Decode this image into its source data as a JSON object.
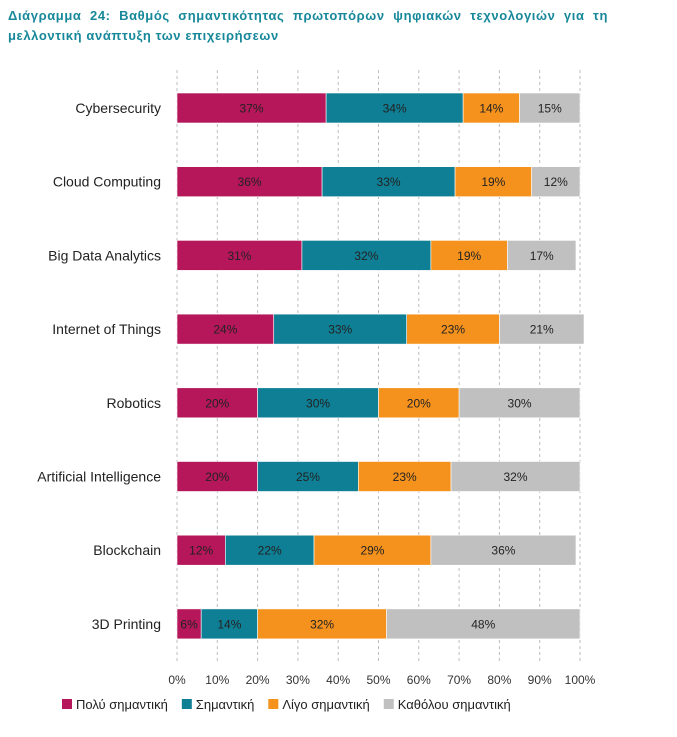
{
  "title_lines": [
    "Διάγραμμα 24: Βαθμός σημαντικότητας πρωτοπόρων ψηφιακών τεχνολογιών για τη",
    "μελλοντική ανάπτυξη των επιχειρήσεων"
  ],
  "chart_data": {
    "type": "bar",
    "orientation": "horizontal",
    "stacked": "100%",
    "categories": [
      "Cybersecurity",
      "Cloud Computing",
      "Big Data Analytics",
      "Internet of Things",
      "Robotics",
      "Artificial Intelligence",
      "Blockchain",
      "3D Printing"
    ],
    "series": [
      {
        "name": "Πολύ σημαντική",
        "color": "#b5175a",
        "values": [
          37,
          36,
          31,
          24,
          20,
          20,
          12,
          6
        ]
      },
      {
        "name": "Σημαντική",
        "color": "#0f7f95",
        "values": [
          34,
          33,
          32,
          33,
          30,
          25,
          22,
          14
        ]
      },
      {
        "name": "Λίγο σημαντική",
        "color": "#f5921e",
        "values": [
          14,
          19,
          19,
          23,
          20,
          23,
          29,
          32
        ]
      },
      {
        "name": "Καθόλου σημαντική",
        "color": "#c0c0c0",
        "values": [
          15,
          12,
          17,
          21,
          30,
          32,
          36,
          48
        ]
      }
    ],
    "value_labels": [
      [
        "37%",
        "34%",
        "14%",
        "15%"
      ],
      [
        "36%",
        "33%",
        "19%",
        "12%"
      ],
      [
        "31%",
        "32%",
        "19%",
        "17%"
      ],
      [
        "24%",
        "33%",
        "23%",
        "21%"
      ],
      [
        "20%",
        "30%",
        "20%",
        "30%"
      ],
      [
        "20%",
        "25%",
        "23%",
        "32%"
      ],
      [
        "12%",
        "22%",
        "29%",
        "36%"
      ],
      [
        "6%",
        "14%",
        "32%",
        "48%"
      ]
    ],
    "x_ticks": [
      "0%",
      "10%",
      "20%",
      "30%",
      "40%",
      "50%",
      "60%",
      "70%",
      "80%",
      "90%",
      "100%"
    ],
    "xlim": [
      0,
      100
    ],
    "grid": "vertical dashed",
    "legend_position": "bottom"
  }
}
